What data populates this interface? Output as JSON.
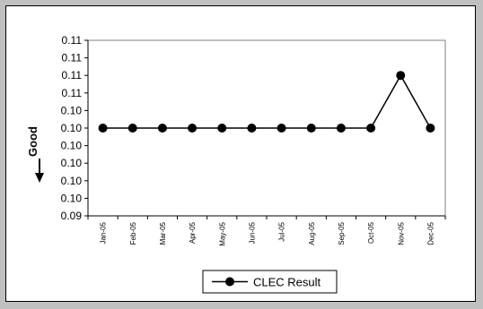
{
  "chart_data": {
    "type": "line",
    "title": "",
    "xlabel": "",
    "ylabel": "Good",
    "categories": [
      "Jan-05",
      "Feb-05",
      "Mar-05",
      "Apr-05",
      "May-05",
      "Jun-05",
      "Jul-05",
      "Aug-05",
      "Sep-05",
      "Oct-05",
      "Nov-05",
      "Dec-05"
    ],
    "y_tick_labels": [
      "0.09",
      "0.10",
      "0.10",
      "0.10",
      "0.10",
      "0.10",
      "0.10",
      "0.11",
      "0.11",
      "0.11",
      "0.11"
    ],
    "ylim": [
      0,
      10
    ],
    "series": [
      {
        "name": "CLEC Result",
        "values": [
          5,
          5,
          5,
          5,
          5,
          5,
          5,
          5,
          5,
          5,
          8,
          5
        ],
        "color": "#000000",
        "marker": "circle"
      }
    ],
    "legend": "bottom-center",
    "grid": false,
    "ylabel_arrow": "down"
  }
}
